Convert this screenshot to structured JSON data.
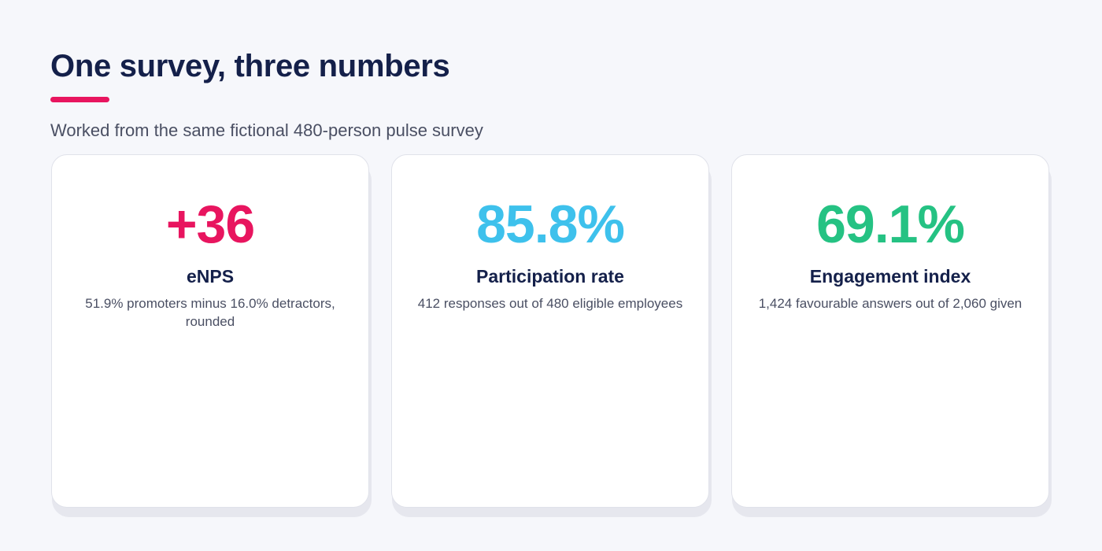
{
  "header": {
    "title": "One survey, three numbers",
    "subtitle": "Worked from the same fictional 480-person pulse survey"
  },
  "colors": {
    "background": "#f6f7fb",
    "title": "#14204a",
    "accent": "#e8155f",
    "enps": "#e8155f",
    "participation": "#3ec1ec",
    "engagement": "#25c283"
  },
  "cards": [
    {
      "value": "+36",
      "label": "eNPS",
      "description": "51.9% promoters minus 16.0% detractors, rounded"
    },
    {
      "value": "85.8%",
      "label": "Participation rate",
      "description": "412 responses out of 480 eligible employees"
    },
    {
      "value": "69.1%",
      "label": "Engagement index",
      "description": "1,424 favourable answers out of 2,060 given"
    }
  ]
}
